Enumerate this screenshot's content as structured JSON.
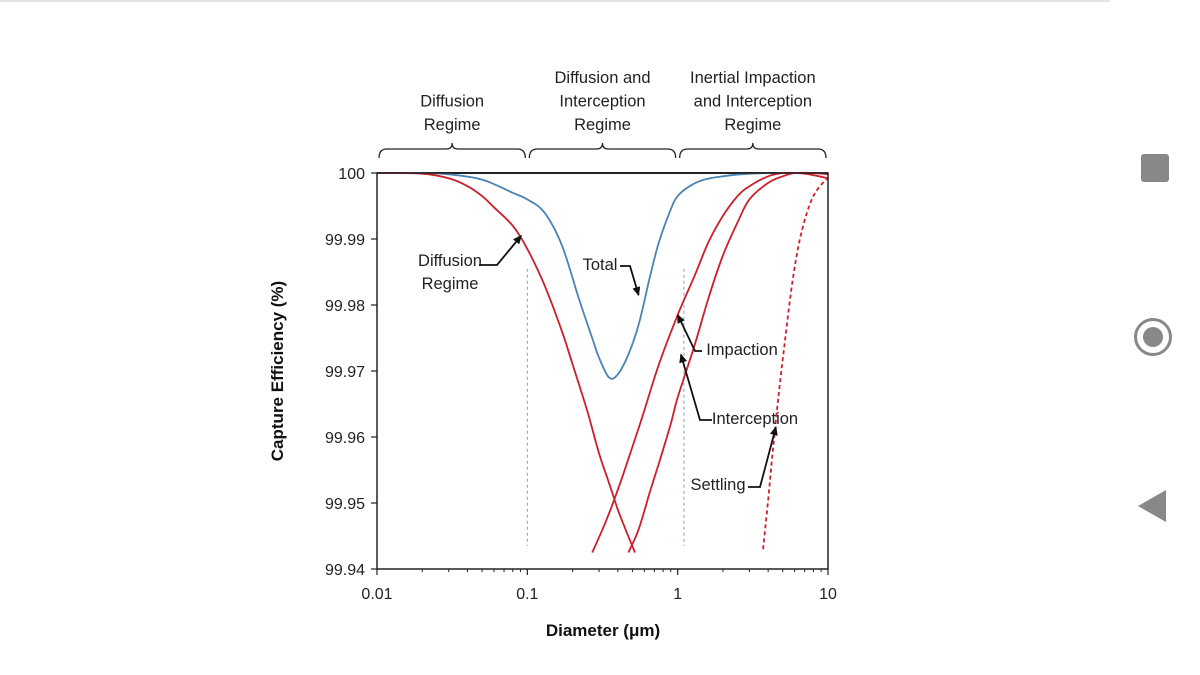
{
  "chart_data": {
    "type": "line",
    "xlabel": "Diameter (μm)",
    "ylabel": "Capture Efficiency (%)",
    "xscale": "log",
    "xlim": [
      0.01,
      10
    ],
    "ylim": [
      99.94,
      100
    ],
    "xticks": [
      "0.01",
      "0.1",
      "1",
      "10"
    ],
    "yticks": [
      "100",
      "99.99",
      "99.98",
      "99.97",
      "99.96",
      "99.95",
      "99.94"
    ],
    "regimes": [
      {
        "lines": [
          "Diffusion",
          "Regime"
        ],
        "from": 0.01,
        "to": 0.1
      },
      {
        "lines": [
          "Diffusion and",
          "Interception",
          "Regime"
        ],
        "from": 0.1,
        "to": 1
      },
      {
        "lines": [
          "Inertial Impaction",
          "and Interception",
          "Regime"
        ],
        "from": 1,
        "to": 10
      }
    ],
    "series": [
      {
        "name": "Total",
        "color": "#4a83b5",
        "style": "solid",
        "x": [
          0.01,
          0.02,
          0.03,
          0.05,
          0.08,
          0.1,
          0.13,
          0.17,
          0.22,
          0.27,
          0.3,
          0.35,
          0.4,
          0.47,
          0.55,
          0.65,
          0.75,
          0.9,
          1.0,
          1.2,
          1.5,
          2.0,
          3.0,
          5.0,
          10.0
        ],
        "y": [
          100.0,
          100.0,
          99.9998,
          99.999,
          99.997,
          99.996,
          99.994,
          99.989,
          99.981,
          99.975,
          99.972,
          99.969,
          99.9695,
          99.9725,
          99.977,
          99.984,
          99.9895,
          99.9945,
          99.9965,
          99.998,
          99.999,
          99.9995,
          99.9999,
          100.0,
          100.0
        ]
      },
      {
        "name": "Diffusion",
        "color": "#cc1f2b",
        "style": "solid",
        "x": [
          0.01,
          0.02,
          0.03,
          0.04,
          0.05,
          0.06,
          0.08,
          0.1,
          0.13,
          0.17,
          0.2,
          0.25,
          0.3,
          0.35,
          0.4,
          0.45,
          0.52
        ],
        "y": [
          100.0,
          99.9999,
          99.9992,
          99.998,
          99.9965,
          99.9948,
          99.992,
          99.9885,
          99.983,
          99.976,
          99.971,
          99.964,
          99.9575,
          99.953,
          99.949,
          99.946,
          99.9425
        ]
      },
      {
        "name": "Impaction",
        "color": "#cc1f2b",
        "style": "solid",
        "x": [
          0.27,
          0.33,
          0.4,
          0.5,
          0.6,
          0.75,
          1.0,
          1.3,
          1.6,
          2.0,
          2.5,
          3.0,
          4.0,
          5.0,
          6.0,
          7.5,
          10.0
        ],
        "y": [
          99.9425,
          99.947,
          99.952,
          99.9585,
          99.964,
          99.971,
          99.9785,
          99.9845,
          99.9895,
          99.9935,
          99.9965,
          99.998,
          99.9995,
          100.0,
          100.0,
          99.9998,
          99.9992
        ]
      },
      {
        "name": "Interception",
        "color": "#cc1f2b",
        "style": "solid",
        "x": [
          0.47,
          0.55,
          0.65,
          0.75,
          0.9,
          1.0,
          1.3,
          1.6,
          2.0,
          2.5,
          3.0,
          4.0,
          5.0,
          6.0,
          8.0,
          10.0
        ],
        "y": [
          99.9425,
          99.946,
          99.9515,
          99.956,
          99.962,
          99.966,
          99.974,
          99.981,
          99.9875,
          99.9925,
          99.996,
          99.9985,
          99.9995,
          100.0,
          100.0,
          99.9998
        ]
      },
      {
        "name": "Settling",
        "color": "#cc1f2b",
        "style": "dashed",
        "x": [
          3.7,
          4.0,
          4.3,
          4.7,
          5.2,
          5.8,
          6.5,
          7.5,
          8.5,
          10.0
        ],
        "y": [
          99.943,
          99.9505,
          99.958,
          99.9665,
          99.975,
          99.9835,
          99.99,
          99.995,
          99.9975,
          99.9993
        ]
      }
    ],
    "vlines": [
      0.1,
      1.1
    ],
    "annotations": [
      {
        "lines": [
          "Diffusion",
          "Regime"
        ],
        "target": [
          0.091,
          99.9905
        ]
      },
      {
        "lines": [
          "Total"
        ],
        "target": [
          0.55,
          99.9815
        ]
      },
      {
        "lines": [
          "Impaction"
        ],
        "target": [
          1.0,
          99.9785
        ]
      },
      {
        "lines": [
          "Interception"
        ],
        "target": [
          1.05,
          99.9725
        ]
      },
      {
        "lines": [
          "Settling"
        ],
        "target": [
          4.5,
          99.9615
        ]
      }
    ]
  }
}
